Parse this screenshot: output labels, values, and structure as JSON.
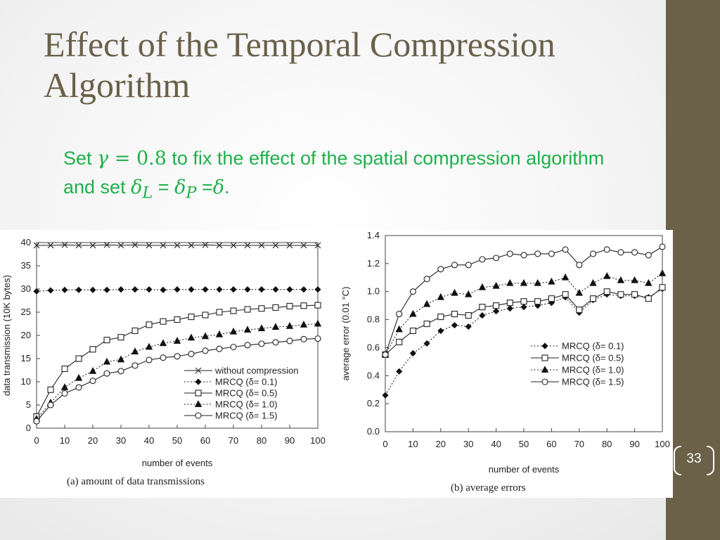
{
  "slide": {
    "title": "Effect of the Temporal Compression Algorithm",
    "subtitle": {
      "t1": "Set ",
      "m1": "γ",
      "m2": " = 0.8",
      "t2": " to fix the effect of the spatial compression algorithm and set  ",
      "m3": "δ",
      "m3sub": "L",
      "t3": " = ",
      "m4": "δ",
      "m4sub": "P",
      "t4": " =",
      "m5": "δ",
      "t5": "."
    },
    "page_number": "33",
    "colors": {
      "sidebar": "#6b6048",
      "title": "#6a604a",
      "subtitle": "#1fb04a"
    }
  },
  "chart_data": [
    {
      "type": "line",
      "caption": "(a) amount of data transmissions",
      "xlabel": "number of events",
      "ylabel": "data transmission (10K bytes)",
      "xlim": [
        0,
        100
      ],
      "ylim": [
        0,
        40
      ],
      "xticks": [
        0,
        10,
        20,
        30,
        40,
        50,
        60,
        70,
        80,
        90,
        100
      ],
      "yticks": [
        0,
        5,
        10,
        15,
        20,
        25,
        30,
        35,
        40
      ],
      "legend_position": "bottom-right",
      "x": [
        0,
        5,
        10,
        15,
        20,
        25,
        30,
        35,
        40,
        45,
        50,
        55,
        60,
        65,
        70,
        75,
        80,
        85,
        90,
        95,
        100
      ],
      "series": [
        {
          "name": "without compression",
          "marker": "x",
          "dash": "solid",
          "values": [
            39.4,
            39.4,
            39.5,
            39.4,
            39.4,
            39.5,
            39.4,
            39.5,
            39.4,
            39.4,
            39.4,
            39.4,
            39.5,
            39.4,
            39.4,
            39.4,
            39.4,
            39.4,
            39.4,
            39.4,
            39.4
          ]
        },
        {
          "name": "MRCQ (δ= 0.1)",
          "marker": "diamond",
          "dash": "dotted",
          "values": [
            29.5,
            29.7,
            29.8,
            29.8,
            29.8,
            29.8,
            29.9,
            29.9,
            29.9,
            29.8,
            29.9,
            29.9,
            29.9,
            29.9,
            29.9,
            29.9,
            29.9,
            29.9,
            29.9,
            29.9,
            29.9
          ]
        },
        {
          "name": "MRCQ (δ= 0.5)",
          "marker": "square",
          "dash": "solid",
          "values": [
            2.5,
            8.3,
            12.8,
            15.0,
            17.0,
            19.0,
            19.6,
            21.0,
            22.3,
            23.0,
            23.4,
            24.0,
            24.4,
            25.0,
            25.3,
            25.6,
            25.8,
            26.0,
            26.3,
            26.4,
            26.5
          ]
        },
        {
          "name": "MRCQ (δ= 1.0)",
          "marker": "triangle",
          "dash": "dotted",
          "values": [
            2.0,
            5.5,
            8.8,
            10.8,
            12.3,
            14.3,
            14.8,
            16.5,
            17.5,
            18.3,
            18.8,
            19.5,
            19.8,
            20.2,
            20.8,
            21.2,
            21.5,
            21.8,
            22.0,
            22.3,
            22.5
          ]
        },
        {
          "name": "MRCQ (δ= 1.5)",
          "marker": "circle",
          "dash": "solid",
          "values": [
            1.5,
            5.0,
            7.5,
            8.8,
            10.2,
            11.8,
            12.3,
            13.5,
            14.7,
            15.2,
            15.5,
            16.0,
            16.7,
            17.1,
            17.5,
            17.9,
            18.2,
            18.5,
            18.8,
            19.2,
            19.3
          ]
        }
      ]
    },
    {
      "type": "line",
      "caption": "(b) average errors",
      "xlabel": "number of events",
      "ylabel": "average error (0.01 °C)",
      "xlim": [
        0,
        100
      ],
      "ylim": [
        0,
        1.4
      ],
      "xticks": [
        0,
        10,
        20,
        30,
        40,
        50,
        60,
        70,
        80,
        90,
        100
      ],
      "yticks": [
        "0.0",
        "0.2",
        "0.4",
        "0.6",
        "0.8",
        "1.0",
        "1.2",
        "1.4"
      ],
      "legend_position": "bottom-right",
      "x": [
        0,
        5,
        10,
        15,
        20,
        25,
        30,
        35,
        40,
        45,
        50,
        55,
        60,
        65,
        70,
        75,
        80,
        85,
        90,
        95,
        100
      ],
      "series": [
        {
          "name": "MRCQ (δ= 0.1)",
          "marker": "diamond",
          "dash": "dotted",
          "values": [
            0.26,
            0.43,
            0.56,
            0.63,
            0.72,
            0.76,
            0.75,
            0.83,
            0.86,
            0.88,
            0.89,
            0.9,
            0.92,
            0.96,
            0.85,
            0.94,
            0.98,
            0.97,
            0.97,
            0.96,
            1.02
          ]
        },
        {
          "name": "MRCQ (δ= 0.5)",
          "marker": "square",
          "dash": "solid",
          "values": [
            0.55,
            0.64,
            0.72,
            0.77,
            0.82,
            0.84,
            0.83,
            0.89,
            0.9,
            0.92,
            0.93,
            0.93,
            0.95,
            0.98,
            0.87,
            0.95,
            1.0,
            0.98,
            0.98,
            0.95,
            1.03
          ]
        },
        {
          "name": "MRCQ (δ= 1.0)",
          "marker": "triangle",
          "dash": "dotted",
          "values": [
            0.55,
            0.73,
            0.84,
            0.91,
            0.96,
            0.99,
            0.98,
            1.03,
            1.04,
            1.06,
            1.06,
            1.06,
            1.07,
            1.1,
            0.99,
            1.06,
            1.11,
            1.08,
            1.08,
            1.06,
            1.13
          ]
        },
        {
          "name": "MRCQ (δ= 1.5)",
          "marker": "circle",
          "dash": "solid",
          "values": [
            0.55,
            0.84,
            1.0,
            1.09,
            1.16,
            1.19,
            1.19,
            1.23,
            1.24,
            1.27,
            1.26,
            1.27,
            1.27,
            1.3,
            1.19,
            1.27,
            1.3,
            1.28,
            1.28,
            1.26,
            1.32
          ]
        }
      ]
    }
  ]
}
